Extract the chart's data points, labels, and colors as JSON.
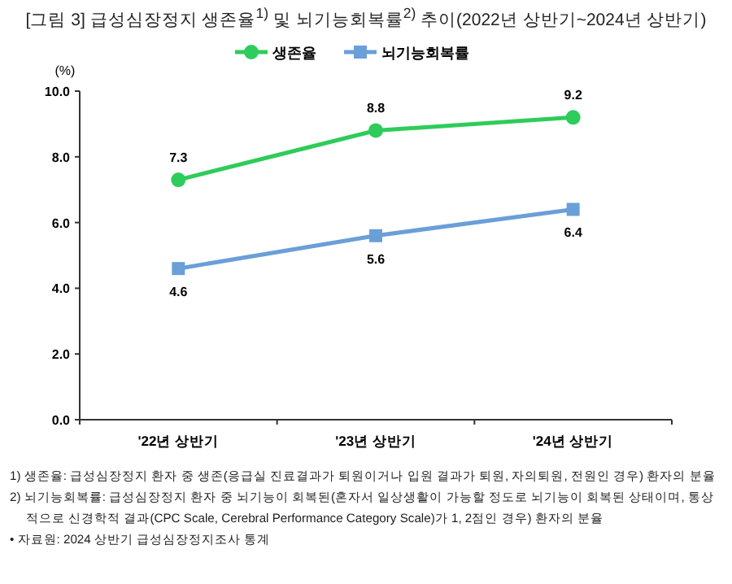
{
  "chart_data": {
    "type": "line",
    "title": "[그림 3] 급성심장정지 생존율$^{1)}$ 및 뇌기능회복률$^{2)}$ 추이(2022년 상반기~2024년 상반기)",
    "ylabel": "(%)",
    "categories": [
      "'22년 상반기",
      "'23년 상반기",
      "'24년 상반기"
    ],
    "series": [
      {
        "name": "생존율",
        "color": "#2ecc5a",
        "marker": "circle",
        "values": [
          7.3,
          8.8,
          9.2
        ]
      },
      {
        "name": "뇌기능회복률",
        "color": "#6a9fd8",
        "marker": "square",
        "values": [
          4.6,
          5.6,
          6.4
        ]
      }
    ],
    "ylim": [
      0,
      10
    ],
    "yticks": [
      {
        "value": 0,
        "label": "0.0"
      },
      {
        "value": 2,
        "label": "2.0"
      },
      {
        "value": 4,
        "label": "4.0"
      },
      {
        "value": 6,
        "label": "6.0"
      },
      {
        "value": 8,
        "label": "8.0"
      },
      {
        "value": 10,
        "label": "10.0"
      }
    ],
    "data_labels": true,
    "legend": "top",
    "grid": false,
    "line_style": "solid",
    "annotations": [
      "1) 생존율: 급성심장정지 환자 중 생존(응급실 진료결과가 퇴원이거나 입원 결과가 퇴원, 자의퇴원, 전원인 경우) 환자의 분율",
      "2) 뇌기능회복률: 급성심장정지 환자 중 뇌기능이 회복된(혼자서 일상생활이 가능할 정도로 뇌기능이 회복된 상태이며, 통상적으로 신경학적 결과(CPC Scale, Cerebral Performance Category Scale)가 1, 2점인 경우) 환자의 분율",
      "• 자료원: 2024 상반기 급성심장정지조사 통계"
    ]
  }
}
